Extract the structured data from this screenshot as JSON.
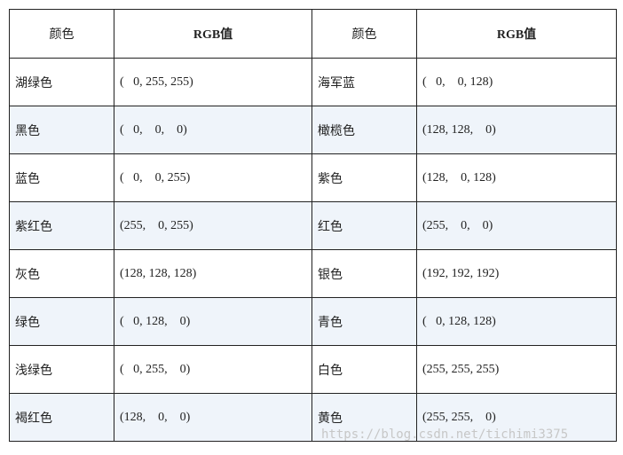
{
  "headers": [
    "颜色",
    "RGB值",
    "颜色",
    "RGB值"
  ],
  "rows": [
    [
      "湖绿色",
      "(   0, 255, 255)",
      "海军蓝",
      "(   0,    0, 128)"
    ],
    [
      "黑色",
      "(   0,    0,    0)",
      "橄榄色",
      "(128, 128,    0)"
    ],
    [
      "蓝色",
      "(   0,    0, 255)",
      "紫色",
      "(128,    0, 128)"
    ],
    [
      "紫红色",
      "(255,    0, 255)",
      "红色",
      "(255,    0,    0)"
    ],
    [
      "灰色",
      "(128, 128, 128)",
      "银色",
      "(192, 192, 192)"
    ],
    [
      "绿色",
      "(   0, 128,    0)",
      "青色",
      "(   0, 128, 128)"
    ],
    [
      "浅绿色",
      "(   0, 255,    0)",
      "白色",
      "(255, 255, 255)"
    ],
    [
      "褐红色",
      "(128,    0,    0)",
      "黄色",
      "(255, 255,    0)"
    ]
  ],
  "watermark": "https://blog.csdn.net/tichimi3375",
  "colors": {
    "border": "#222222",
    "alt_row_background": "#eff4fa",
    "watermark": "#c7c7c7"
  }
}
